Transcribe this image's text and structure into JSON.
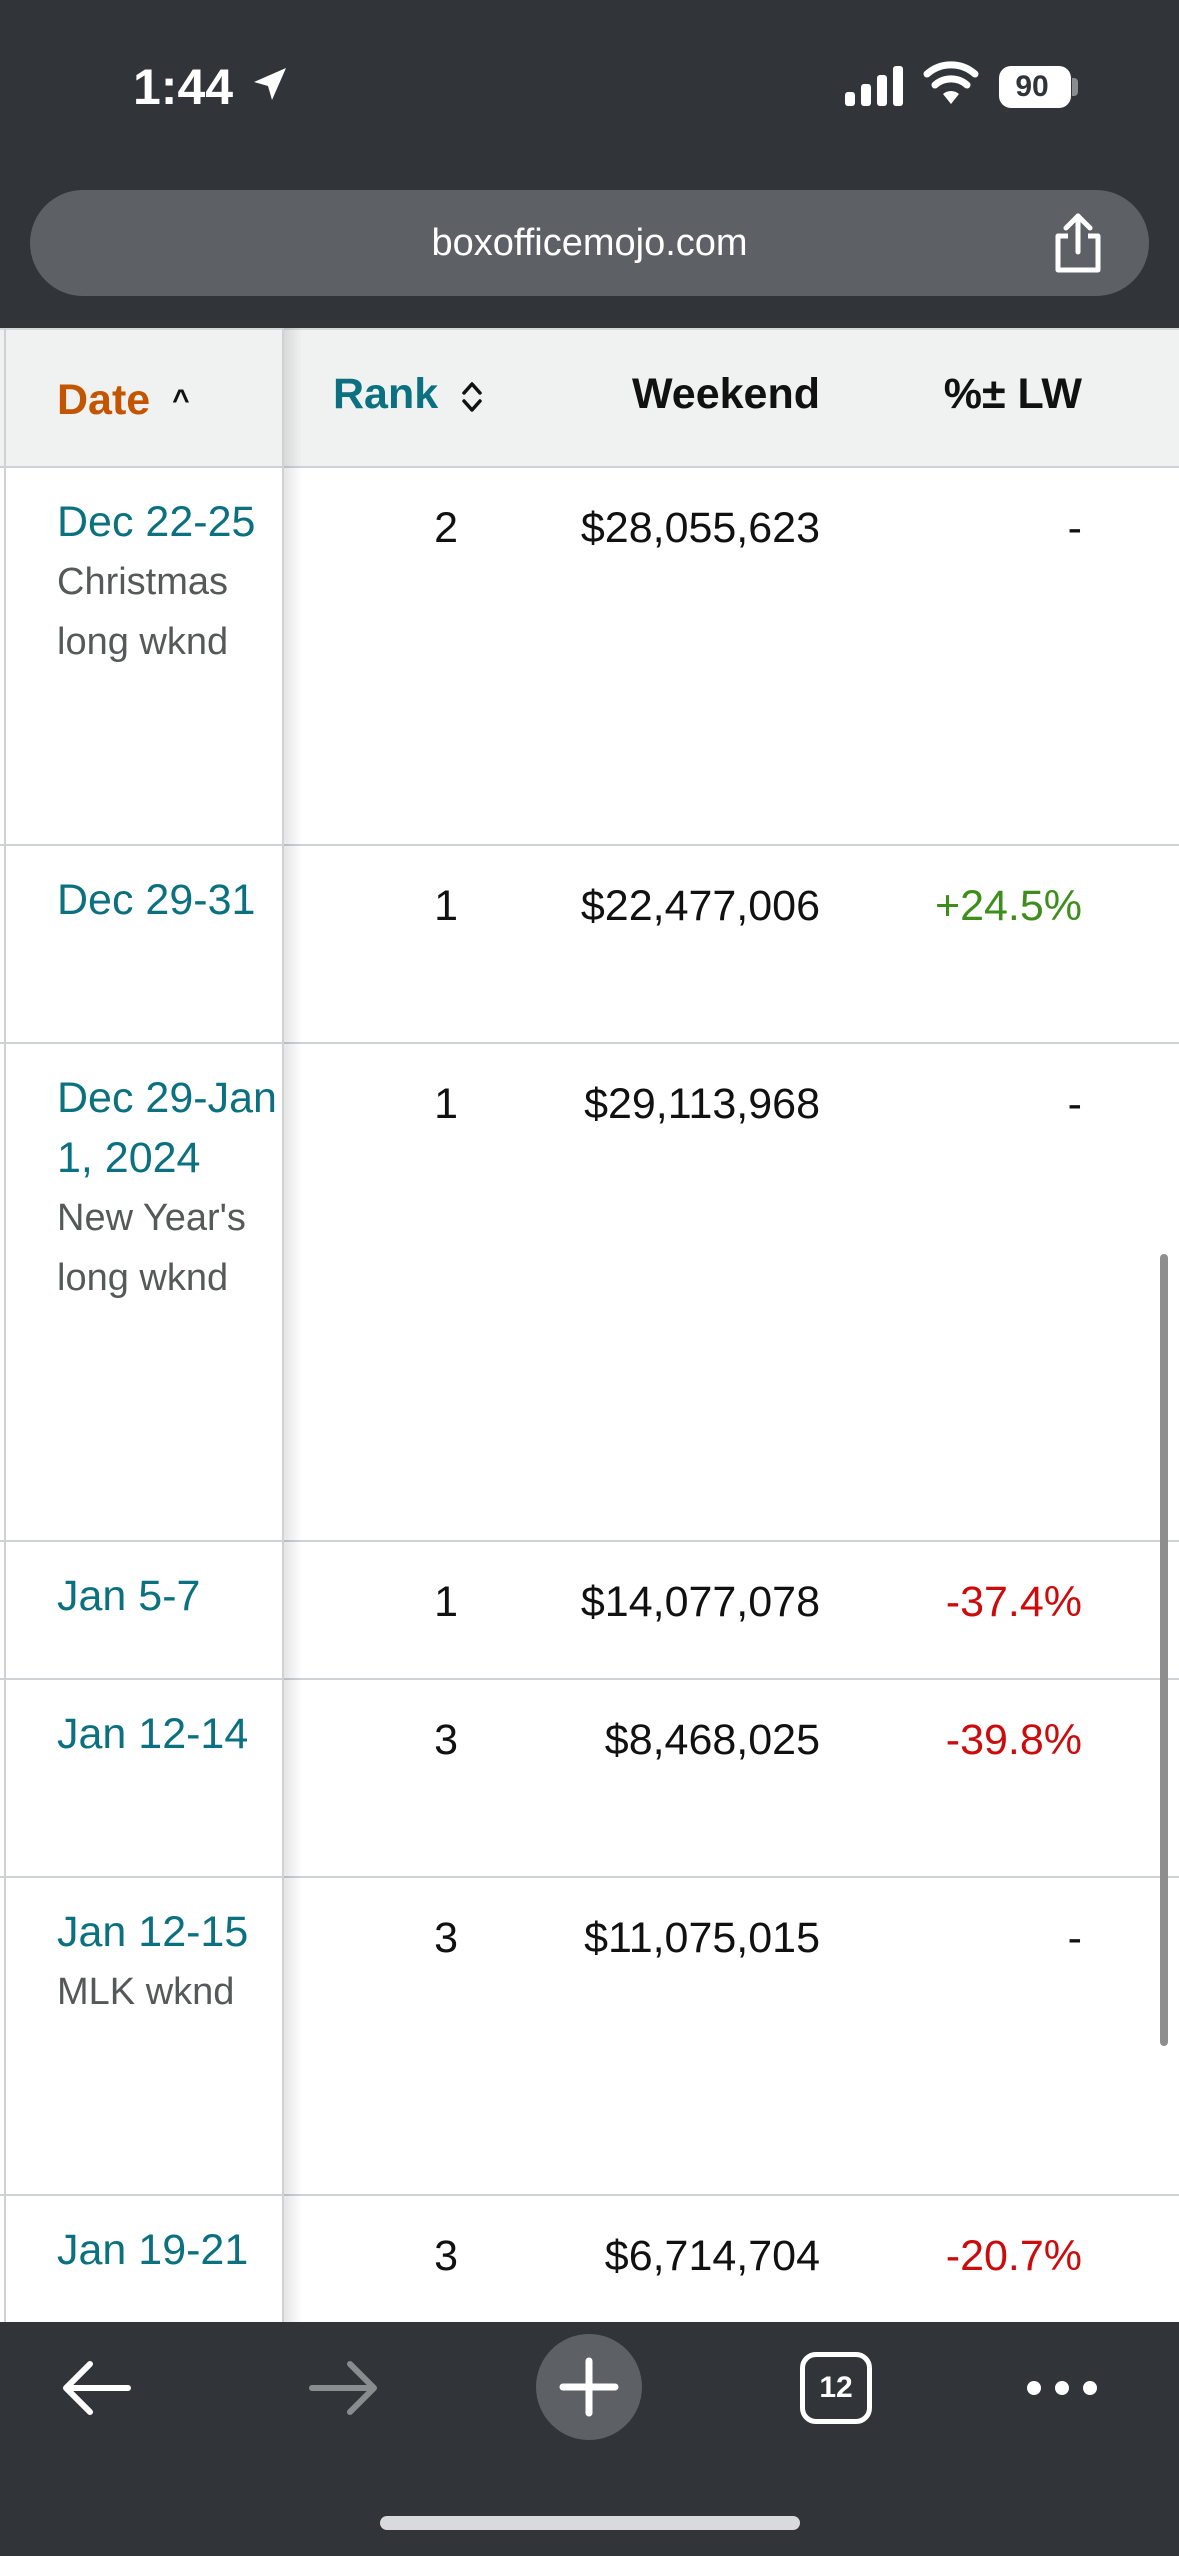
{
  "status_bar": {
    "time": "1:44",
    "battery": "90"
  },
  "browser": {
    "url": "boxofficemojo.com",
    "tab_count": "12"
  },
  "table": {
    "headers": {
      "date": "Date",
      "date_sort_indicator": "^",
      "rank": "Rank",
      "weekend": "Weekend",
      "lw": "%± LW"
    },
    "rows": [
      {
        "date": "Dec 22-25",
        "note": "Christmas long wknd",
        "rank": "2",
        "weekend": "$28,055,623",
        "lw": "-"
      },
      {
        "date": "Dec 29-31",
        "note": "",
        "rank": "1",
        "weekend": "$22,477,006",
        "lw": "+24.5%"
      },
      {
        "date": "Dec 29-Jan 1, 2024",
        "note": "New Year's long wknd",
        "rank": "1",
        "weekend": "$29,113,968",
        "lw": "-"
      },
      {
        "date": "Jan 5-7",
        "note": "",
        "rank": "1",
        "weekend": "$14,077,078",
        "lw": "-37.4%"
      },
      {
        "date": "Jan 12-14",
        "note": "",
        "rank": "3",
        "weekend": "$8,468,025",
        "lw": "-39.8%"
      },
      {
        "date": "Jan 12-15",
        "note": "MLK wknd",
        "rank": "3",
        "weekend": "$11,075,015",
        "lw": "-"
      },
      {
        "date": "Jan 19-21",
        "note": "",
        "rank": "3",
        "weekend": "$6,714,704",
        "lw": "-20.7%"
      }
    ]
  },
  "colors": {
    "positive": "#3e8e1c",
    "negative": "#cc0c0c",
    "neutral": "#111111",
    "link": "#0b7080",
    "sorted_header": "#c45500"
  }
}
